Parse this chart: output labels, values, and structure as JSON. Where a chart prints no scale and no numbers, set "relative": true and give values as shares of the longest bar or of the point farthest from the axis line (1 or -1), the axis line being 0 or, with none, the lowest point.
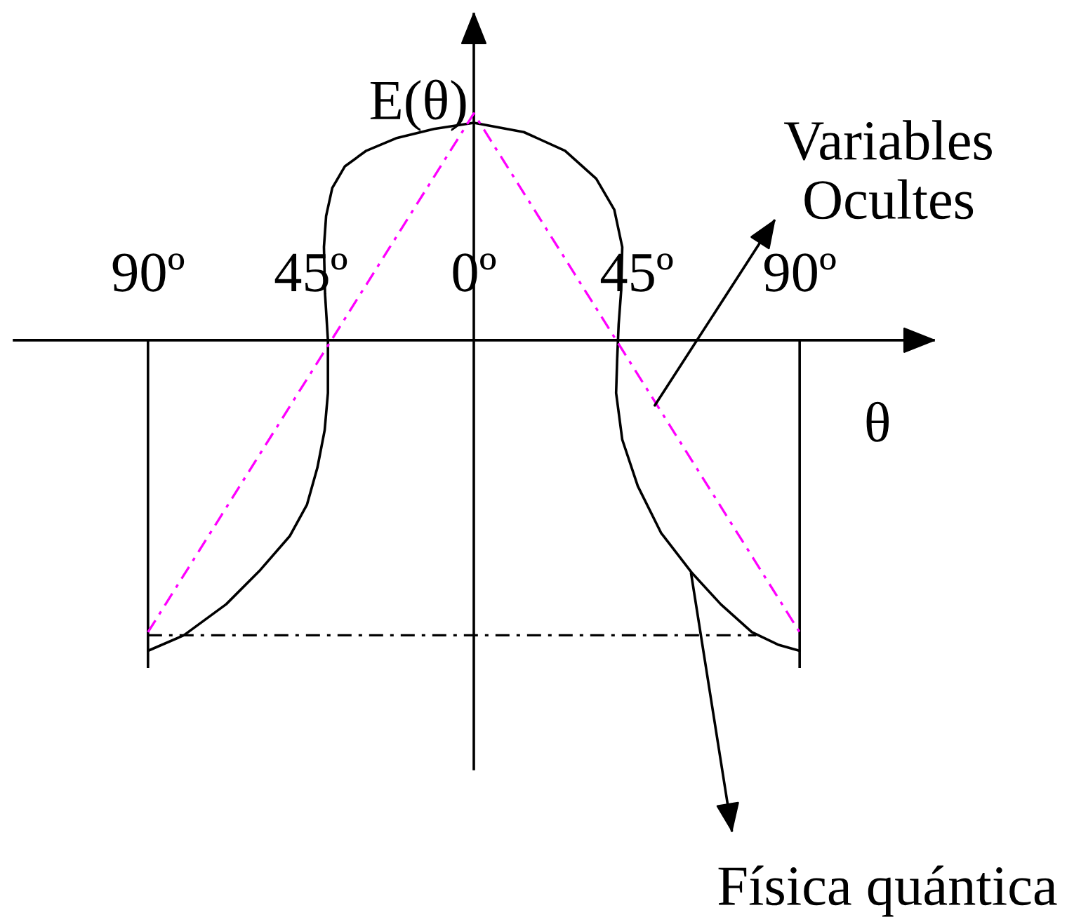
{
  "chart_data": {
    "type": "line",
    "relative": true,
    "xlabel": "θ",
    "ylabel": "E(θ)",
    "xlim": [
      -127,
      127
    ],
    "xticks": [
      {
        "value": -90,
        "label": "90º"
      },
      {
        "value": -45,
        "label": "45º"
      },
      {
        "value": 0,
        "label": "0º"
      },
      {
        "value": 45,
        "label": "45º"
      },
      {
        "value": 90,
        "label": "90º"
      }
    ],
    "tick_labels": "x",
    "series": [
      {
        "color": "#000000",
        "line_style": "solid",
        "x": [
          -90,
          -80.1,
          -68.4,
          -59.0,
          -50.8,
          -46.1,
          -43.2,
          -41.2,
          -40.3,
          -40.3,
          -41.1,
          -41.4,
          -40.8,
          -39.1,
          -35.6,
          -29.7,
          -21.5,
          -11.0,
          0,
          13.8,
          25.2,
          33.8,
          38.8,
          41.0,
          40.7,
          40.0,
          39.6,
          39.3,
          41.0,
          45.3,
          51.7,
          60.3,
          68.2,
          76.8,
          84.0,
          90
        ],
        "values": [
          -1,
          -0.95,
          -0.85,
          -0.74,
          -0.63,
          -0.53,
          -0.41,
          -0.29,
          -0.17,
          0,
          0.15,
          0.3,
          0.4,
          0.49,
          0.56,
          0.61,
          0.65,
          0.68,
          0.7,
          0.67,
          0.61,
          0.52,
          0.42,
          0.3,
          0.16,
          0.05,
          -0.06,
          -0.17,
          -0.32,
          -0.47,
          -0.62,
          -0.75,
          -0.85,
          -0.94,
          -0.98,
          -1
        ]
      },
      {
        "color": "#ff00ff",
        "line_style": "dashdot",
        "x": [
          -90,
          0,
          90
        ],
        "values": [
          -0.94,
          0.73,
          -0.94
        ]
      },
      {
        "color": "#000000",
        "line_style": "dashdot",
        "x": [
          -90,
          78
        ],
        "values": [
          -0.95,
          -0.95
        ]
      }
    ],
    "ref_lines": [
      {
        "axis": "x",
        "value": -90,
        "color": "#000000"
      },
      {
        "axis": "x",
        "value": 90,
        "color": "#000000"
      }
    ],
    "annotations": [
      {
        "text": "Variables\nOcultes",
        "x": 50,
        "y": -0.21
      },
      {
        "text": "Física quántica",
        "x": 60,
        "y": -0.75
      }
    ]
  }
}
